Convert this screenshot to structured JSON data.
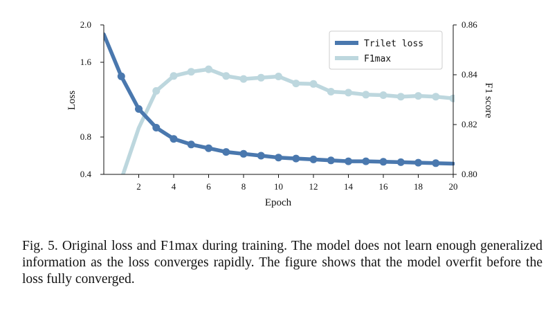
{
  "caption": "Fig. 5.  Original loss and F1max during training. The model does not learn enough generalized information as the loss converges rapidly. The figure shows that the model overfit before the loss fully converged.",
  "chart_data": {
    "type": "line",
    "xlabel": "Epoch",
    "ylabel": "Loss",
    "y2label": "F1 score",
    "xlim": [
      0,
      20
    ],
    "ylim": [
      0.4,
      2.0
    ],
    "y2lim": [
      0.8,
      0.86
    ],
    "x_ticks": [
      2,
      4,
      6,
      8,
      10,
      12,
      14,
      16,
      18,
      20
    ],
    "y_ticks": [
      0.4,
      0.8,
      1.6,
      2.0
    ],
    "y_tick_labels": [
      "0.4",
      "0.8",
      "1.6",
      "2.0"
    ],
    "y2_ticks": [
      0.8,
      0.82,
      0.84,
      0.86
    ],
    "y2_tick_labels": [
      "0.80",
      "0.82",
      "0.84",
      "0.86"
    ],
    "legend_position": "top-right",
    "grid": false,
    "series": [
      {
        "name": "Trilet loss",
        "axis": "left",
        "color": "#4a78ae",
        "x": [
          0,
          1,
          2,
          3,
          4,
          5,
          6,
          7,
          8,
          9,
          10,
          11,
          12,
          13,
          14,
          15,
          16,
          17,
          18,
          19,
          20
        ],
        "y": [
          1.9,
          1.45,
          1.1,
          0.9,
          0.78,
          0.72,
          0.68,
          0.64,
          0.62,
          0.6,
          0.58,
          0.57,
          0.56,
          0.55,
          0.54,
          0.54,
          0.535,
          0.53,
          0.525,
          0.52,
          0.515
        ],
        "markers": [
          1,
          2,
          3,
          4,
          5,
          6,
          7,
          8,
          9,
          10,
          11,
          12,
          13,
          14,
          15,
          16,
          17,
          18,
          19
        ]
      },
      {
        "name": "F1max",
        "axis": "right",
        "color": "#bdd7de",
        "x": [
          1.1,
          2,
          3,
          4,
          5,
          6,
          7,
          8,
          9,
          10,
          11,
          12,
          13,
          14,
          15,
          16,
          17,
          18,
          19,
          20
        ],
        "y": [
          0.8,
          0.8186,
          0.8335,
          0.8395,
          0.8412,
          0.8422,
          0.8395,
          0.8383,
          0.8388,
          0.8393,
          0.8365,
          0.8363,
          0.8332,
          0.8328,
          0.832,
          0.8318,
          0.8312,
          0.8315,
          0.8312,
          0.8305
        ],
        "markers": [
          2,
          3,
          4,
          5,
          6,
          7,
          8,
          9,
          10,
          11,
          12,
          13,
          14,
          15,
          16,
          17,
          18,
          19
        ]
      }
    ]
  }
}
